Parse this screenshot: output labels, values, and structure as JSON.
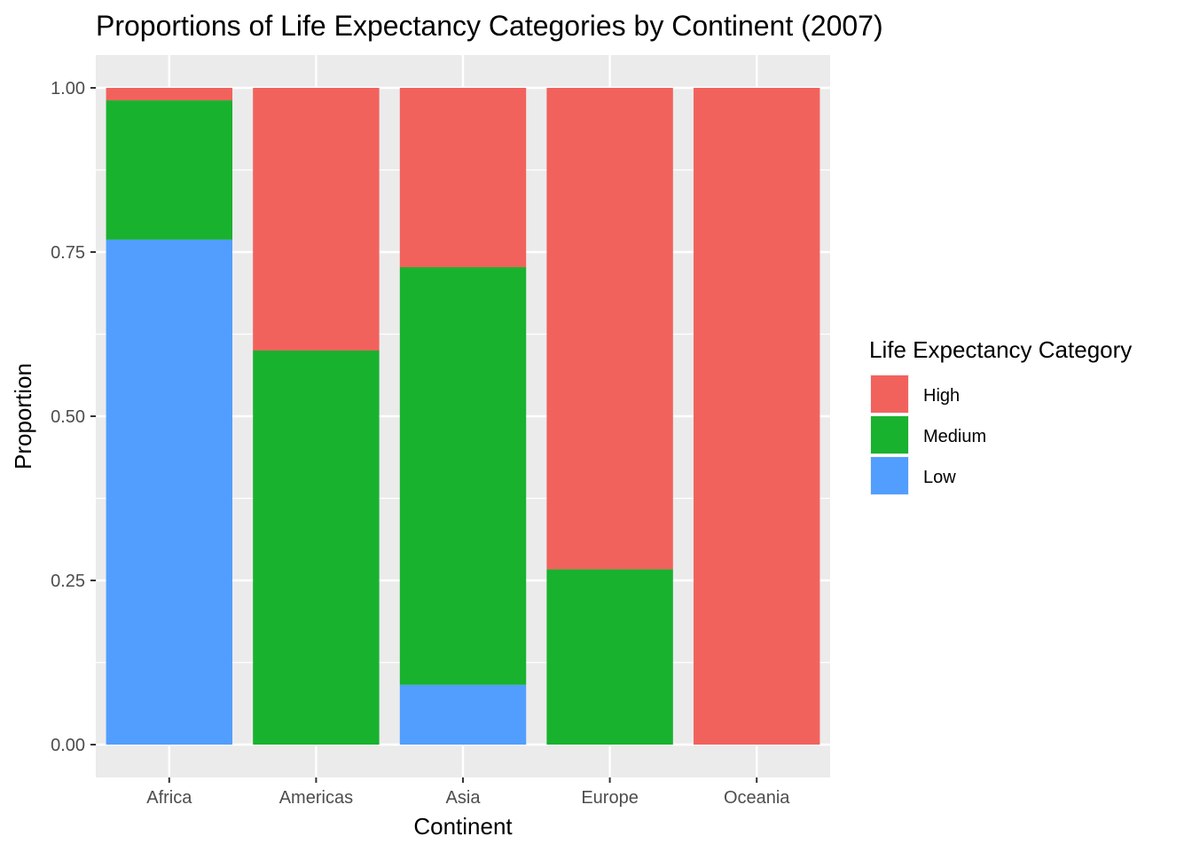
{
  "chart_data": {
    "type": "bar",
    "stacked": true,
    "title": "Proportions of Life Expectancy Categories by Continent (2007)",
    "xlabel": "Continent",
    "ylabel": "Proportion",
    "categories": [
      "Africa",
      "Americas",
      "Asia",
      "Europe",
      "Oceania"
    ],
    "ylim": [
      -0.05,
      1.05
    ],
    "yticks": [
      "0.00",
      "0.25",
      "0.50",
      "0.75",
      "1.00"
    ],
    "yticks_values": [
      0,
      0.25,
      0.5,
      0.75,
      1.0
    ],
    "grid": true,
    "legend_position": "right",
    "legend_title": "Life Expectancy Category",
    "series": [
      {
        "name": "Low",
        "color": "#529EFF",
        "values": [
          0.769,
          0.0,
          0.091,
          0.0,
          0.0
        ]
      },
      {
        "name": "Medium",
        "color": "#19B22F",
        "values": [
          0.212,
          0.6,
          0.636,
          0.267,
          0.0
        ]
      },
      {
        "name": "High",
        "color": "#F2625D",
        "values": [
          0.019,
          0.4,
          0.273,
          0.733,
          1.0
        ]
      }
    ],
    "legend_order": [
      "High",
      "Medium",
      "Low"
    ]
  }
}
